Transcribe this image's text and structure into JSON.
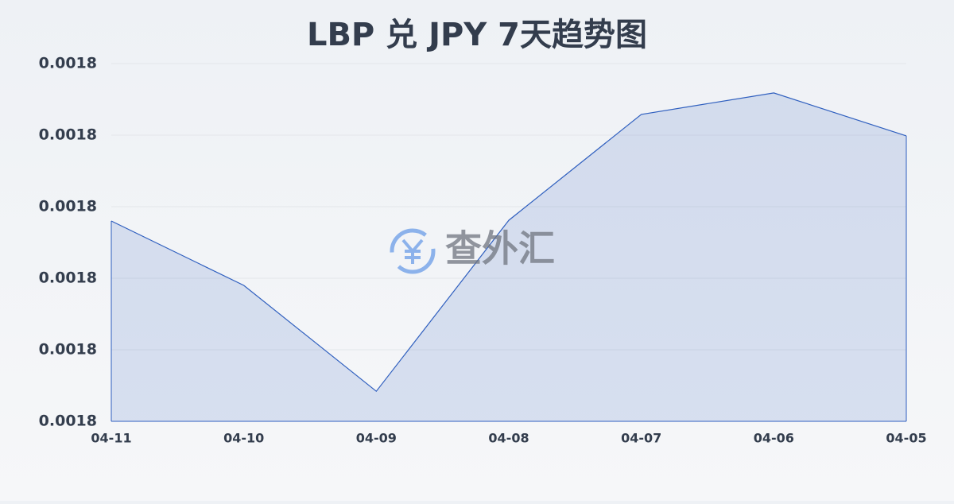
{
  "chart_data": {
    "type": "area",
    "title": "LBP 兑 JPY 7天趋势图",
    "watermark": "查外汇",
    "categories": [
      "04-11",
      "04-10",
      "04-09",
      "04-08",
      "04-07",
      "04-06",
      "04-05"
    ],
    "values": [
      0.001788,
      0.001779,
      0.0017642,
      0.0017881,
      0.0018029,
      0.0018059,
      0.0017999
    ],
    "color": "#2f5fbf",
    "ylim": [
      0.00176,
      0.00181
    ],
    "yticks": [
      {
        "value": 0.00176,
        "label": "0.0018"
      },
      {
        "value": 0.00177,
        "label": "0.0018"
      },
      {
        "value": 0.00178,
        "label": "0.0018"
      },
      {
        "value": 0.00179,
        "label": "0.0018"
      },
      {
        "value": 0.0018,
        "label": "0.0018"
      },
      {
        "value": 0.00181,
        "label": "0.0018"
      }
    ],
    "grid": true
  }
}
